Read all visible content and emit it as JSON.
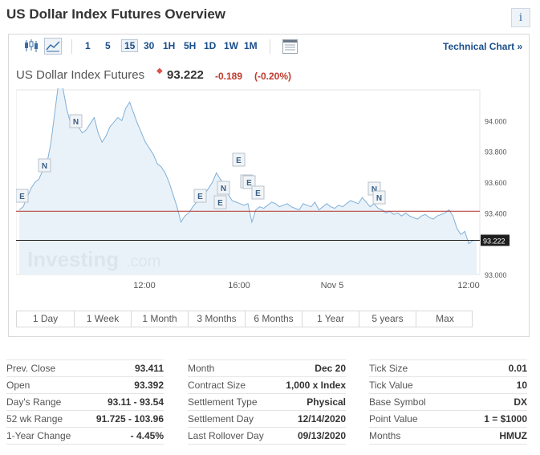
{
  "header": {
    "title": "US Dollar Index Futures Overview",
    "info_icon": "i"
  },
  "toolbar": {
    "chart_type_icons": [
      "candlestick-icon",
      "area-chart-icon"
    ],
    "intervals": [
      "1",
      "5",
      "15",
      "30",
      "1H",
      "5H",
      "1D",
      "1W",
      "1M"
    ],
    "active_interval": "15",
    "settings_icon": "calendar-grid-icon",
    "technical_link": "Technical Chart »"
  },
  "instrument": {
    "name": "US Dollar Index Futures",
    "status_dot": "◆",
    "price": "93.222",
    "change": "-0.189",
    "change_pct": "(-0.20%)"
  },
  "chart_data": {
    "type": "area",
    "ylim": [
      93.0,
      94.2
    ],
    "y_ticks": [
      "94.000",
      "93.800",
      "93.600",
      "93.400",
      "93.200",
      "93.000"
    ],
    "x_ticks": [
      "12:00",
      "16:00",
      "Nov 5",
      "12:00"
    ],
    "prev_close_line": 93.411,
    "current_price_label": "93.222",
    "watermark": "Investing",
    "watermark_suffix": ".com",
    "series": [
      {
        "values": [
          93.42,
          93.44,
          93.5,
          93.56,
          93.6,
          93.62,
          93.68,
          93.72,
          93.85,
          94.05,
          94.25,
          94.22,
          94.08,
          93.98,
          94.02,
          93.96,
          93.92,
          93.94,
          93.98,
          94.02,
          93.92,
          93.86,
          93.9,
          93.96,
          93.99,
          94.02,
          94.0,
          94.08,
          94.12,
          94.05,
          93.98,
          93.92,
          93.86,
          93.82,
          93.78,
          93.72,
          93.7,
          93.66,
          93.6,
          93.52,
          93.44,
          93.34,
          93.38,
          93.4,
          93.44,
          93.47,
          93.5,
          93.52,
          93.56,
          93.6,
          93.66,
          93.62,
          93.58,
          93.52,
          93.48,
          93.47,
          93.46,
          93.45,
          93.46,
          93.34,
          93.42,
          93.44,
          93.43,
          93.45,
          93.47,
          93.46,
          93.44,
          93.45,
          93.46,
          93.44,
          93.43,
          93.42,
          93.46,
          93.45,
          93.44,
          93.47,
          93.42,
          93.44,
          93.46,
          93.44,
          93.43,
          93.45,
          93.44,
          93.46,
          93.48,
          93.47,
          93.46,
          93.5,
          93.47,
          93.44,
          93.46,
          93.43,
          93.42,
          93.4,
          93.41,
          93.39,
          93.4,
          93.38,
          93.4,
          93.38,
          93.37,
          93.36,
          93.38,
          93.39,
          93.37,
          93.36,
          93.38,
          93.39,
          93.4,
          93.42,
          93.38,
          93.3,
          93.26,
          93.28,
          93.2,
          93.22,
          93.222
        ]
      }
    ],
    "event_markers": [
      "E",
      "N",
      "N",
      "E",
      "E",
      "N",
      "E",
      "E",
      "E",
      "E",
      "N",
      "N"
    ]
  },
  "ranges": [
    "1 Day",
    "1 Week",
    "1 Month",
    "3 Months",
    "6 Months",
    "1 Year",
    "5 years",
    "Max"
  ],
  "stats": {
    "col1": [
      {
        "label": "Prev. Close",
        "value": "93.411"
      },
      {
        "label": "Open",
        "value": "93.392"
      },
      {
        "label": "Day's Range",
        "value": "93.11 - 93.54"
      },
      {
        "label": "52 wk Range",
        "value": "91.725 - 103.96"
      },
      {
        "label": "1-Year Change",
        "value": "- 4.45%"
      }
    ],
    "col2": [
      {
        "label": "Month",
        "value": "Dec 20"
      },
      {
        "label": "Contract Size",
        "value": "1,000 x Index"
      },
      {
        "label": "Settlement Type",
        "value": "Physical"
      },
      {
        "label": "Settlement Day",
        "value": "12/14/2020"
      },
      {
        "label": "Last Rollover Day",
        "value": "09/13/2020"
      }
    ],
    "col3": [
      {
        "label": "Tick Size",
        "value": "0.01"
      },
      {
        "label": "Tick Value",
        "value": "10"
      },
      {
        "label": "Base Symbol",
        "value": "DX"
      },
      {
        "label": "Point Value",
        "value": "1 = $1000"
      },
      {
        "label": "Months",
        "value": "HMUZ"
      }
    ]
  },
  "colors": {
    "line": "#7fb0d8",
    "area": "#e6f0f8",
    "prev_close": "#b03030",
    "price_line": "#222222",
    "link": "#1a4e8a",
    "negative": "#c0392b"
  }
}
